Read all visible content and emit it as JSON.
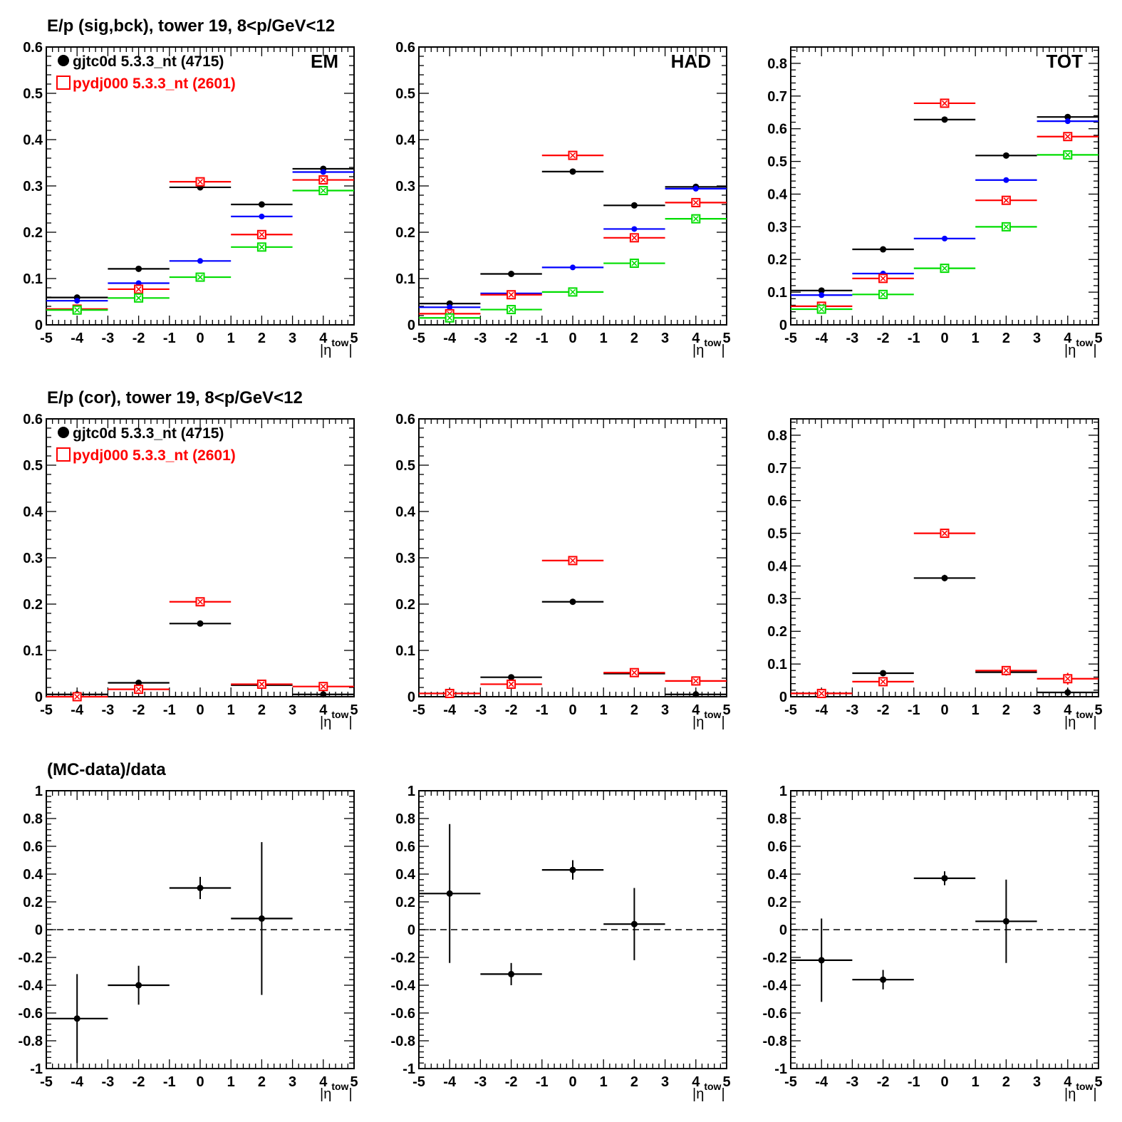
{
  "colors": {
    "gjtc0d": "#000000",
    "pydj000": "#ff0000",
    "series_blue": "#0000ff",
    "series_green": "#00dd00"
  },
  "legend": {
    "entries": [
      {
        "label": "gjtc0d 5.3.3_nt (4715)",
        "color": "#000000",
        "marker": "filled-circle"
      },
      {
        "label": "pydj000 5.3.3_nt (2601)",
        "color": "#ff0000",
        "marker": "open-square"
      }
    ]
  },
  "rows": [
    {
      "title": "E/p (sig,bck), tower 19,  8<p/GeV<12",
      "has_legend": true
    },
    {
      "title": "E/p (cor), tower 19,  8<p/GeV<12",
      "has_legend": true
    },
    {
      "title": "(MC-data)/data",
      "has_legend": false
    }
  ],
  "chart_data": [
    {
      "type": "scatter",
      "row": 0,
      "col": 0,
      "corner_label": "EM",
      "xlabel": "|η^tow|",
      "xlim": [
        -5,
        5
      ],
      "ylim": [
        0,
        0.6
      ],
      "yticks": [
        0,
        0.1,
        0.2,
        0.3,
        0.4,
        0.5,
        0.6
      ],
      "yticklabels": [
        "0",
        "0.1",
        "0.2",
        "0.3",
        "0.4",
        "0.5",
        "0.6"
      ],
      "xticks": [
        -5,
        -4,
        -3,
        -2,
        -1,
        0,
        1,
        2,
        3,
        4,
        5
      ],
      "series": [
        {
          "color": "#000000",
          "marker": "filled-circle",
          "x": [
            -4,
            -2,
            0,
            2,
            4
          ],
          "xerr": 1,
          "y": [
            0.059,
            0.121,
            0.297,
            0.26,
            0.337
          ]
        },
        {
          "color": "#0000ff",
          "marker": "small-circle",
          "x": [
            -4,
            -2,
            0,
            2,
            4
          ],
          "xerr": 1,
          "y": [
            0.052,
            0.09,
            0.138,
            0.234,
            0.33
          ]
        },
        {
          "color": "#ff0000",
          "marker": "open-square",
          "x": [
            -4,
            -2,
            0,
            2,
            4
          ],
          "xerr": 1,
          "y": [
            0.034,
            0.077,
            0.309,
            0.195,
            0.313
          ]
        },
        {
          "color": "#00dd00",
          "marker": "open-square",
          "x": [
            -4,
            -2,
            0,
            2,
            4
          ],
          "xerr": 1,
          "y": [
            0.032,
            0.058,
            0.103,
            0.168,
            0.29
          ]
        }
      ]
    },
    {
      "type": "scatter",
      "row": 0,
      "col": 1,
      "corner_label": "HAD",
      "xlabel": "|η^tow|",
      "xlim": [
        -5,
        5
      ],
      "ylim": [
        0,
        0.6
      ],
      "yticks": [
        0,
        0.1,
        0.2,
        0.3,
        0.4,
        0.5,
        0.6
      ],
      "yticklabels": [
        "0",
        "0.1",
        "0.2",
        "0.3",
        "0.4",
        "0.5",
        "0.6"
      ],
      "xticks": [
        -5,
        -4,
        -3,
        -2,
        -1,
        0,
        1,
        2,
        3,
        4,
        5
      ],
      "series": [
        {
          "color": "#000000",
          "marker": "filled-circle",
          "x": [
            -4,
            -2,
            0,
            2,
            4
          ],
          "xerr": 1,
          "y": [
            0.046,
            0.11,
            0.331,
            0.258,
            0.298
          ]
        },
        {
          "color": "#0000ff",
          "marker": "small-circle",
          "x": [
            -4,
            -2,
            0,
            2,
            4
          ],
          "xerr": 1,
          "y": [
            0.038,
            0.068,
            0.124,
            0.207,
            0.294
          ]
        },
        {
          "color": "#ff0000",
          "marker": "open-square",
          "x": [
            -4,
            -2,
            0,
            2,
            4
          ],
          "xerr": 1,
          "y": [
            0.024,
            0.065,
            0.366,
            0.188,
            0.264
          ]
        },
        {
          "color": "#00dd00",
          "marker": "open-square",
          "x": [
            -4,
            -2,
            0,
            2,
            4
          ],
          "xerr": 1,
          "y": [
            0.015,
            0.033,
            0.071,
            0.133,
            0.229
          ]
        }
      ]
    },
    {
      "type": "scatter",
      "row": 0,
      "col": 2,
      "corner_label": "TOT",
      "xlabel": "|η^tow|",
      "xlim": [
        -5,
        5
      ],
      "ylim": [
        0,
        0.85
      ],
      "yticks": [
        0,
        0.1,
        0.2,
        0.3,
        0.4,
        0.5,
        0.6,
        0.7,
        0.8
      ],
      "yticklabels": [
        "0",
        "0.1",
        "0.2",
        "0.3",
        "0.4",
        "0.5",
        "0.6",
        "0.7",
        "0.8"
      ],
      "xticks": [
        -5,
        -4,
        -3,
        -2,
        -1,
        0,
        1,
        2,
        3,
        4,
        5
      ],
      "series": [
        {
          "color": "#000000",
          "marker": "filled-circle",
          "x": [
            -4,
            -2,
            0,
            2,
            4
          ],
          "xerr": 1,
          "y": [
            0.105,
            0.231,
            0.628,
            0.518,
            0.636
          ]
        },
        {
          "color": "#0000ff",
          "marker": "small-circle",
          "x": [
            -4,
            -2,
            0,
            2,
            4
          ],
          "xerr": 1,
          "y": [
            0.091,
            0.157,
            0.264,
            0.443,
            0.623
          ]
        },
        {
          "color": "#ff0000",
          "marker": "open-square",
          "x": [
            -4,
            -2,
            0,
            2,
            4
          ],
          "xerr": 1,
          "y": [
            0.057,
            0.142,
            0.678,
            0.381,
            0.576
          ]
        },
        {
          "color": "#00dd00",
          "marker": "open-square",
          "x": [
            -4,
            -2,
            0,
            2,
            4
          ],
          "xerr": 1,
          "y": [
            0.048,
            0.093,
            0.173,
            0.3,
            0.52
          ]
        }
      ]
    },
    {
      "type": "scatter",
      "row": 1,
      "col": 0,
      "corner_label": "",
      "xlabel": "|η^tow|",
      "xlim": [
        -5,
        5
      ],
      "ylim": [
        0,
        0.6
      ],
      "yticks": [
        0,
        0.1,
        0.2,
        0.3,
        0.4,
        0.5,
        0.6
      ],
      "yticklabels": [
        "0",
        "0.1",
        "0.2",
        "0.3",
        "0.4",
        "0.5",
        "0.6"
      ],
      "xticks": [
        -5,
        -4,
        -3,
        -2,
        -1,
        0,
        1,
        2,
        3,
        4,
        5
      ],
      "series": [
        {
          "color": "#000000",
          "marker": "filled-circle",
          "x": [
            -4,
            -2,
            0,
            2,
            4
          ],
          "xerr": 1,
          "y": [
            0.005,
            0.03,
            0.158,
            0.025,
            0.005
          ],
          "yerr": [
            0.008,
            0.004,
            0.004,
            0.005,
            0.008
          ]
        },
        {
          "color": "#ff0000",
          "marker": "open-square",
          "x": [
            -4,
            -2,
            0,
            2,
            4
          ],
          "xerr": 1,
          "y": [
            0.0,
            0.016,
            0.205,
            0.027,
            0.022
          ],
          "yerr": [
            0.004,
            0.005,
            0.004,
            0.005,
            0.01
          ]
        }
      ]
    },
    {
      "type": "scatter",
      "row": 1,
      "col": 1,
      "corner_label": "",
      "xlabel": "|η^tow|",
      "xlim": [
        -5,
        5
      ],
      "ylim": [
        0,
        0.6
      ],
      "yticks": [
        0,
        0.1,
        0.2,
        0.3,
        0.4,
        0.5,
        0.6
      ],
      "yticklabels": [
        "0",
        "0.1",
        "0.2",
        "0.3",
        "0.4",
        "0.5",
        "0.6"
      ],
      "xticks": [
        -5,
        -4,
        -3,
        -2,
        -1,
        0,
        1,
        2,
        3,
        4,
        5
      ],
      "series": [
        {
          "color": "#000000",
          "marker": "filled-circle",
          "x": [
            -4,
            -2,
            0,
            2,
            4
          ],
          "xerr": 1,
          "y": [
            0.007,
            0.042,
            0.205,
            0.05,
            0.005
          ],
          "yerr": [
            0.005,
            0.004,
            0.004,
            0.006,
            0.008
          ]
        },
        {
          "color": "#ff0000",
          "marker": "open-square",
          "x": [
            -4,
            -2,
            0,
            2,
            4
          ],
          "xerr": 1,
          "y": [
            0.007,
            0.027,
            0.294,
            0.052,
            0.034
          ],
          "yerr": [
            0.004,
            0.005,
            0.005,
            0.006,
            0.01
          ]
        }
      ]
    },
    {
      "type": "scatter",
      "row": 1,
      "col": 2,
      "corner_label": "",
      "xlabel": "|η^tow|",
      "xlim": [
        -5,
        5
      ],
      "ylim": [
        0,
        0.85
      ],
      "yticks": [
        0,
        0.1,
        0.2,
        0.3,
        0.4,
        0.5,
        0.6,
        0.7,
        0.8
      ],
      "yticklabels": [
        "0",
        "0.1",
        "0.2",
        "0.3",
        "0.4",
        "0.5",
        "0.6",
        "0.7",
        "0.8"
      ],
      "xticks": [
        -5,
        -4,
        -3,
        -2,
        -1,
        0,
        1,
        2,
        3,
        4,
        5
      ],
      "series": [
        {
          "color": "#000000",
          "marker": "filled-circle",
          "x": [
            -4,
            -2,
            0,
            2,
            4
          ],
          "xerr": 1,
          "y": [
            0.01,
            0.072,
            0.363,
            0.075,
            0.013
          ],
          "yerr": [
            0.008,
            0.006,
            0.01,
            0.01,
            0.012
          ]
        },
        {
          "color": "#ff0000",
          "marker": "open-square",
          "x": [
            -4,
            -2,
            0,
            2,
            4
          ],
          "xerr": 1,
          "y": [
            0.01,
            0.046,
            0.5,
            0.08,
            0.055
          ],
          "yerr": [
            0.006,
            0.007,
            0.007,
            0.008,
            0.018
          ]
        }
      ]
    },
    {
      "type": "scatter",
      "row": 2,
      "col": 0,
      "corner_label": "",
      "xlabel": "|η^tow|",
      "xlim": [
        -5,
        5
      ],
      "ylim": [
        -1,
        1
      ],
      "zero_line": true,
      "yticks": [
        -1,
        -0.8,
        -0.6,
        -0.4,
        -0.2,
        0,
        0.2,
        0.4,
        0.6,
        0.8,
        1
      ],
      "yticklabels": [
        "-1",
        "-0.8",
        "-0.6",
        "-0.4",
        "-0.2",
        "0",
        "0.2",
        "0.4",
        "0.6",
        "0.8",
        "1"
      ],
      "xticks": [
        -5,
        -4,
        -3,
        -2,
        -1,
        0,
        1,
        2,
        3,
        4,
        5
      ],
      "series": [
        {
          "color": "#000000",
          "marker": "filled-circle",
          "x": [
            -4,
            -2,
            0,
            2
          ],
          "xerr": 1,
          "y": [
            -0.64,
            -0.4,
            0.3,
            0.08
          ],
          "yerr": [
            0.32,
            0.14,
            0.08,
            0.55
          ]
        }
      ]
    },
    {
      "type": "scatter",
      "row": 2,
      "col": 1,
      "corner_label": "",
      "xlabel": "|η^tow|",
      "xlim": [
        -5,
        5
      ],
      "ylim": [
        -1,
        1
      ],
      "zero_line": true,
      "yticks": [
        -1,
        -0.8,
        -0.6,
        -0.4,
        -0.2,
        0,
        0.2,
        0.4,
        0.6,
        0.8,
        1
      ],
      "yticklabels": [
        "-1",
        "-0.8",
        "-0.6",
        "-0.4",
        "-0.2",
        "0",
        "0.2",
        "0.4",
        "0.6",
        "0.8",
        "1"
      ],
      "xticks": [
        -5,
        -4,
        -3,
        -2,
        -1,
        0,
        1,
        2,
        3,
        4,
        5
      ],
      "series": [
        {
          "color": "#000000",
          "marker": "filled-circle",
          "x": [
            -4,
            -2,
            0,
            2
          ],
          "xerr": 1,
          "y": [
            0.26,
            -0.32,
            0.43,
            0.04
          ],
          "yerr": [
            0.5,
            0.08,
            0.07,
            0.26
          ]
        }
      ]
    },
    {
      "type": "scatter",
      "row": 2,
      "col": 2,
      "corner_label": "",
      "xlabel": "|η^tow|",
      "xlim": [
        -5,
        5
      ],
      "ylim": [
        -1,
        1
      ],
      "zero_line": true,
      "yticks": [
        -1,
        -0.8,
        -0.6,
        -0.4,
        -0.2,
        0,
        0.2,
        0.4,
        0.6,
        0.8,
        1
      ],
      "yticklabels": [
        "-1",
        "-0.8",
        "-0.6",
        "-0.4",
        "-0.2",
        "0",
        "0.2",
        "0.4",
        "0.6",
        "0.8",
        "1"
      ],
      "xticks": [
        -5,
        -4,
        -3,
        -2,
        -1,
        0,
        1,
        2,
        3,
        4,
        5
      ],
      "series": [
        {
          "color": "#000000",
          "marker": "filled-circle",
          "x": [
            -4,
            -2,
            0,
            2
          ],
          "xerr": 1,
          "y": [
            -0.22,
            -0.36,
            0.37,
            0.06
          ],
          "yerr": [
            0.3,
            0.07,
            0.05,
            0.3
          ]
        }
      ]
    }
  ]
}
